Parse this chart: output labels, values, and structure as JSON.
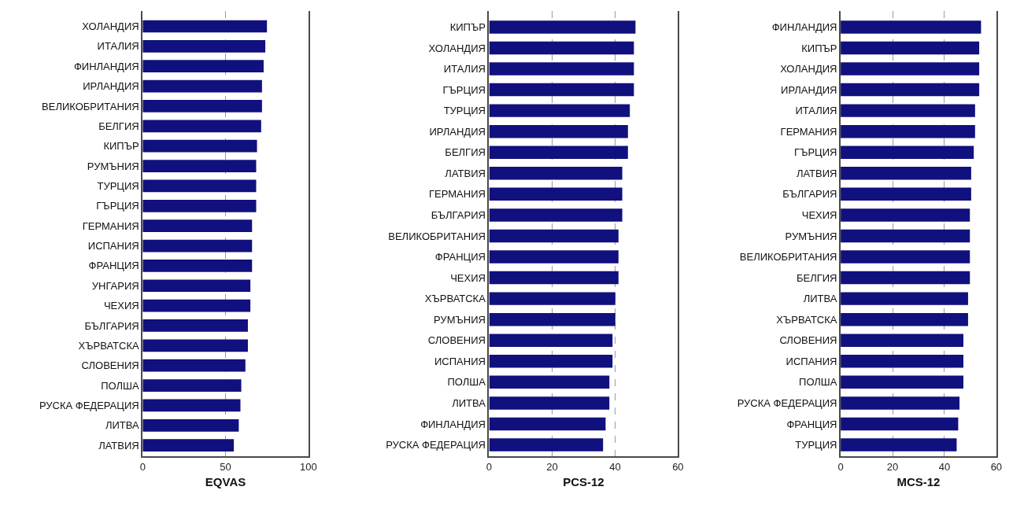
{
  "chart_data": [
    {
      "type": "bar",
      "orientation": "horizontal",
      "xlabel": "EQVAS",
      "categories": [
        "ХОЛАНДИЯ",
        "ИТАЛИЯ",
        "ФИНЛАНДИЯ",
        "ИРЛАНДИЯ",
        "ВЕЛИКОБРИТАНИЯ",
        "БЕЛГИЯ",
        "КИПЪР",
        "РУМЪНИЯ",
        "ТУРЦИЯ",
        "ГЪРЦИЯ",
        "ГЕРМАНИЯ",
        "ИСПАНИЯ",
        "ФРАНЦИЯ",
        "УНГАРИЯ",
        "ЧЕХИЯ",
        "БЪЛГАРИЯ",
        "ХЪРВАТСКА",
        "СЛОВЕНИЯ",
        "ПОЛША",
        "РУСКА ФЕДЕРАЦИЯ",
        "ЛИТВА",
        "ЛАТВИЯ"
      ],
      "values": [
        75,
        74,
        73,
        72,
        72,
        71.5,
        69,
        68.5,
        68.5,
        68.5,
        66,
        66,
        66,
        65,
        65,
        63.5,
        63.5,
        62,
        59.5,
        59,
        58,
        55
      ],
      "color": "#10107e",
      "xlim": [
        0,
        100
      ],
      "xticks": [
        0,
        50,
        100
      ],
      "grid": "x"
    },
    {
      "type": "bar",
      "orientation": "horizontal",
      "xlabel": "PCS-12",
      "categories": [
        "КИПЪР",
        "ХОЛАНДИЯ",
        "ИТАЛИЯ",
        "ГЪРЦИЯ",
        "ТУРЦИЯ",
        "ИРЛАНДИЯ",
        "БЕЛГИЯ",
        "ЛАТВИЯ",
        "ГЕРМАНИЯ",
        "БЪЛГАРИЯ",
        "ВЕЛИКОБРИТАНИЯ",
        "ФРАНЦИЯ",
        "ЧЕХИЯ",
        "ХЪРВАТСКА",
        "РУМЪНИЯ",
        "СЛОВЕНИЯ",
        "ИСПАНИЯ",
        "ПОЛША",
        "ЛИТВА",
        "ФИНЛАНДИЯ",
        "РУСКА ФЕДЕРАЦИЯ"
      ],
      "values": [
        46.5,
        46,
        46,
        46,
        44.7,
        44.1,
        44.1,
        42.3,
        42.3,
        42.3,
        41.1,
        41.1,
        41.1,
        40.1,
        40.1,
        39.2,
        39.2,
        38.2,
        38.2,
        37,
        36.2
      ],
      "color": "#10107e",
      "xlim": [
        0,
        60
      ],
      "xticks": [
        0,
        20,
        40,
        60
      ],
      "grid": "x"
    },
    {
      "type": "bar",
      "orientation": "horizontal",
      "xlabel": "MCS-12",
      "categories": [
        "ФИНЛАНДИЯ",
        "КИПЪР",
        "ХОЛАНДИЯ",
        "ИРЛАНДИЯ",
        "ИТАЛИЯ",
        "ГЕРМАНИЯ",
        "ГЪРЦИЯ",
        "ЛАТВИЯ",
        "БЪЛГАРИЯ",
        "ЧЕХИЯ",
        "РУМЪНИЯ",
        "ВЕЛИКОБРИТАНИЯ",
        "БЕЛГИЯ",
        "ЛИТВА",
        "ХЪРВАТСКА",
        "СЛОВЕНИЯ",
        "ИСПАНИЯ",
        "ПОЛША",
        "РУСКА ФЕДЕРАЦИЯ",
        "ФРАНЦИЯ",
        "ТУРЦИЯ"
      ],
      "values": [
        54.1,
        53.4,
        53.4,
        53.4,
        51.8,
        51.8,
        51.3,
        50.3,
        50.3,
        49.8,
        49.8,
        49.8,
        49.8,
        49.1,
        49.1,
        47.3,
        47.3,
        47.3,
        45.8,
        45.3,
        44.7
      ],
      "color": "#10107e",
      "xlim": [
        0,
        60
      ],
      "xticks": [
        0,
        20,
        40,
        60
      ],
      "grid": "x"
    }
  ]
}
